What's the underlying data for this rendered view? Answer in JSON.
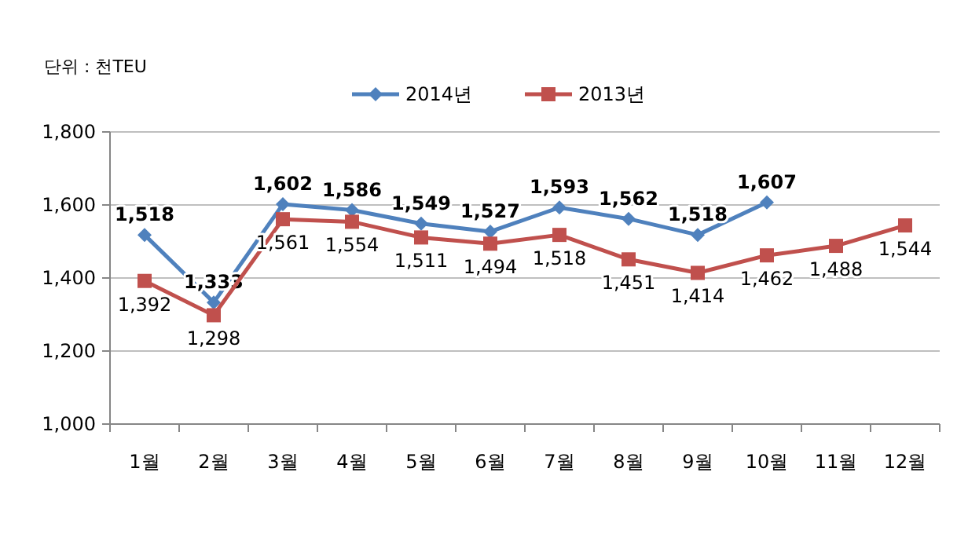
{
  "chart_data": {
    "type": "line",
    "categories": [
      "1월",
      "2월",
      "3월",
      "4월",
      "5월",
      "6월",
      "7월",
      "8월",
      "9월",
      "10월",
      "11월",
      "12월"
    ],
    "series": [
      {
        "name": "2014년",
        "color": "#4f81bd",
        "marker": "diamond",
        "values": [
          1518,
          1333,
          1602,
          1586,
          1549,
          1527,
          1593,
          1562,
          1518,
          1607,
          null,
          null
        ],
        "value_labels": [
          "1,518",
          "1,333",
          "1,602",
          "1,586",
          "1,549",
          "1,527",
          "1,593",
          "1,562",
          "1,518",
          "1,607",
          null,
          null
        ]
      },
      {
        "name": "2013년",
        "color": "#c0504d",
        "marker": "square",
        "values": [
          1392,
          1298,
          1561,
          1554,
          1511,
          1494,
          1518,
          1451,
          1414,
          1462,
          1488,
          1544
        ],
        "value_labels": [
          "1,392",
          "1,298",
          "1,561",
          "1,554",
          "1,511",
          "1,494",
          "1,518",
          "1,451",
          "1,414",
          "1,462",
          "1,488",
          "1,544"
        ]
      }
    ],
    "ylim": [
      1000,
      1800
    ],
    "yticks": [
      {
        "value": 1000,
        "label": "1,000"
      },
      {
        "value": 1200,
        "label": "1,200"
      },
      {
        "value": 1400,
        "label": "1,400"
      },
      {
        "value": 1600,
        "label": "1,600"
      },
      {
        "value": 1800,
        "label": "1,800"
      }
    ],
    "grid": "y",
    "legend": "top",
    "annotations": [
      "단위 : 천TEU"
    ]
  }
}
